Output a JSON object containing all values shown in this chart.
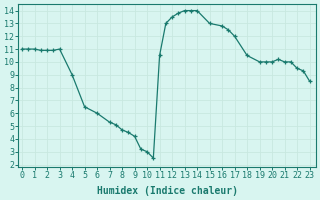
{
  "x": [
    0,
    0.5,
    1,
    1.5,
    2,
    2.5,
    3,
    4,
    5,
    6,
    7,
    7.5,
    8,
    8.5,
    9,
    9.5,
    10,
    10.5,
    11,
    11.5,
    12,
    12.5,
    13,
    13.5,
    14,
    15,
    16,
    16.5,
    17,
    18,
    19,
    19.5,
    20,
    20.5,
    21,
    21.5,
    22,
    22.5,
    23
  ],
  "y": [
    11.0,
    11.0,
    11.0,
    10.9,
    10.9,
    10.9,
    11.0,
    9.0,
    6.5,
    6.0,
    5.3,
    5.1,
    4.7,
    4.5,
    4.2,
    3.2,
    3.0,
    2.5,
    10.5,
    13.0,
    13.5,
    13.8,
    14.0,
    14.0,
    14.0,
    13.0,
    12.8,
    12.5,
    12.0,
    10.5,
    10.0,
    10.0,
    10.0,
    10.2,
    10.0,
    10.0,
    9.5,
    9.3,
    8.5
  ],
  "line_color": "#1a7a6e",
  "marker_color": "#1a7a6e",
  "bg_color": "#d8f5f0",
  "grid_major_color": "#c8e8e0",
  "grid_minor_color": "#ddf2ee",
  "axis_color": "#1a7a6e",
  "xlabel": "Humidex (Indice chaleur)",
  "yticks": [
    2,
    3,
    4,
    5,
    6,
    7,
    8,
    9,
    10,
    11,
    12,
    13,
    14
  ],
  "xticks": [
    0,
    1,
    2,
    3,
    4,
    5,
    6,
    7,
    8,
    9,
    10,
    11,
    12,
    13,
    14,
    15,
    16,
    17,
    18,
    19,
    20,
    21,
    22,
    23
  ]
}
